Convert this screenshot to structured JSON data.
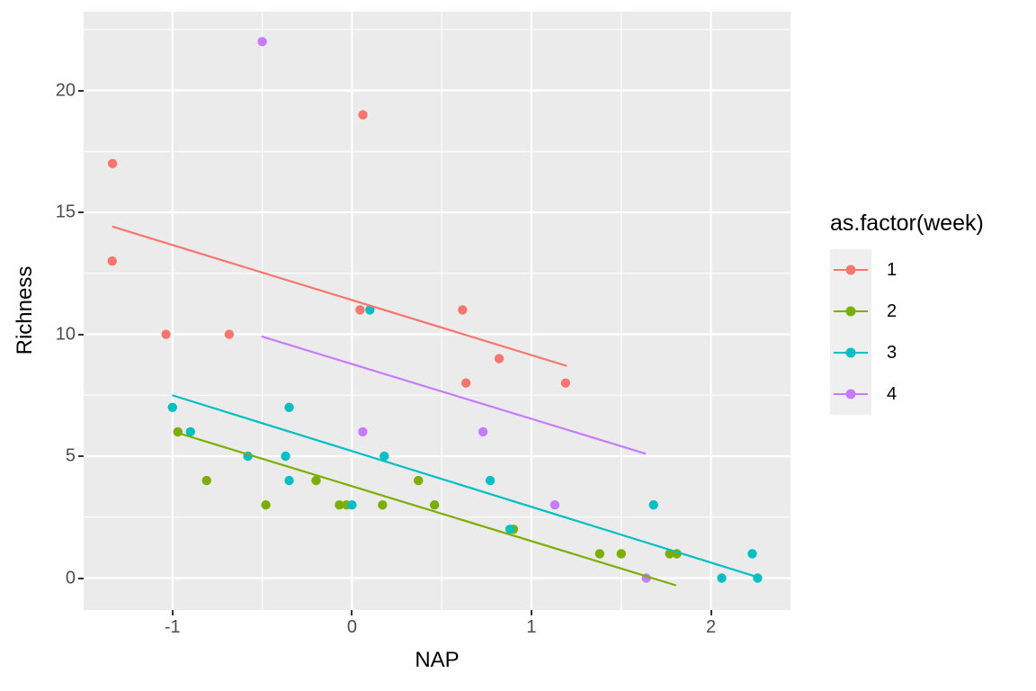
{
  "axes": {
    "x": {
      "label": "NAP",
      "domain": [
        -1.495,
        2.443
      ],
      "major_ticks": [
        {
          "value": -1,
          "label": "-1"
        },
        {
          "value": 0,
          "label": "0"
        },
        {
          "value": 1,
          "label": "1"
        },
        {
          "value": 2,
          "label": "2"
        }
      ],
      "minor_ticks": [
        -0.5,
        0.5,
        1.5
      ]
    },
    "y": {
      "label": "Richness",
      "domain": [
        -1.31,
        23.23
      ],
      "major_ticks": [
        {
          "value": 0,
          "label": "0"
        },
        {
          "value": 5,
          "label": "5"
        },
        {
          "value": 10,
          "label": "10"
        },
        {
          "value": 15,
          "label": "15"
        },
        {
          "value": 20,
          "label": "20"
        }
      ],
      "minor_ticks": [
        2.5,
        7.5,
        12.5,
        17.5,
        22.5
      ]
    }
  },
  "legend": {
    "title": "as.factor(week)",
    "items": [
      {
        "label": "1",
        "color": "#F8766D"
      },
      {
        "label": "2",
        "color": "#7CAE00"
      },
      {
        "label": "3",
        "color": "#00BFC4"
      },
      {
        "label": "4",
        "color": "#C77CFF"
      }
    ]
  },
  "chart_data": {
    "type": "scatter",
    "title": "",
    "xlabel": "NAP",
    "ylabel": "Richness",
    "xlim": [
      -1.495,
      2.443
    ],
    "ylim": [
      -1.31,
      23.23
    ],
    "grid": "on",
    "legend_position": "right",
    "panel_background": "#EBEBEB",
    "gridline_color": "#FFFFFF",
    "series": [
      {
        "name": "1",
        "color": "#F8766D",
        "points": [
          [
            0.045,
            11
          ],
          [
            -1.036,
            10
          ],
          [
            -1.336,
            13
          ],
          [
            0.616,
            11
          ],
          [
            -0.684,
            10
          ],
          [
            1.19,
            8
          ],
          [
            0.82,
            9
          ],
          [
            0.635,
            8
          ],
          [
            0.061,
            19
          ],
          [
            -1.334,
            17
          ]
        ],
        "trend_line": {
          "x1": -1.336,
          "y1": 14.42,
          "x2": 1.197,
          "y2": 8.7
        }
      },
      {
        "name": "2",
        "color": "#7CAE00",
        "points": [
          [
            -0.97,
            6
          ],
          [
            -0.81,
            4
          ],
          [
            -0.48,
            3
          ],
          [
            -0.2,
            4
          ],
          [
            -0.07,
            3
          ],
          [
            -0.03,
            3
          ],
          [
            0.17,
            3
          ],
          [
            0.37,
            4
          ],
          [
            0.46,
            3
          ],
          [
            0.9,
            2
          ],
          [
            1.38,
            1
          ],
          [
            1.5,
            1
          ],
          [
            1.77,
            1
          ],
          [
            1.81,
            1
          ]
        ],
        "trend_line": {
          "x1": -0.973,
          "y1": 5.96,
          "x2": 1.806,
          "y2": -0.3
        }
      },
      {
        "name": "3",
        "color": "#00BFC4",
        "points": [
          [
            -1.0,
            7
          ],
          [
            -0.9,
            6
          ],
          [
            -0.58,
            5
          ],
          [
            -0.37,
            5
          ],
          [
            -0.35,
            7
          ],
          [
            -0.35,
            4
          ],
          [
            0.0,
            3
          ],
          [
            0.1,
            11
          ],
          [
            0.18,
            5
          ],
          [
            0.77,
            4
          ],
          [
            0.88,
            2
          ],
          [
            1.68,
            3
          ],
          [
            2.06,
            0
          ],
          [
            2.23,
            1
          ],
          [
            2.26,
            0
          ]
        ],
        "trend_line": {
          "x1": -1.002,
          "y1": 7.5,
          "x2": 2.26,
          "y2": 0.04
        }
      },
      {
        "name": "4",
        "color": "#C77CFF",
        "points": [
          [
            -0.5,
            22
          ],
          [
            0.06,
            6
          ],
          [
            0.73,
            6
          ],
          [
            1.13,
            3
          ],
          [
            1.64,
            0
          ]
        ],
        "trend_line": {
          "x1": -0.503,
          "y1": 9.91,
          "x2": 1.637,
          "y2": 5.1
        }
      }
    ]
  }
}
